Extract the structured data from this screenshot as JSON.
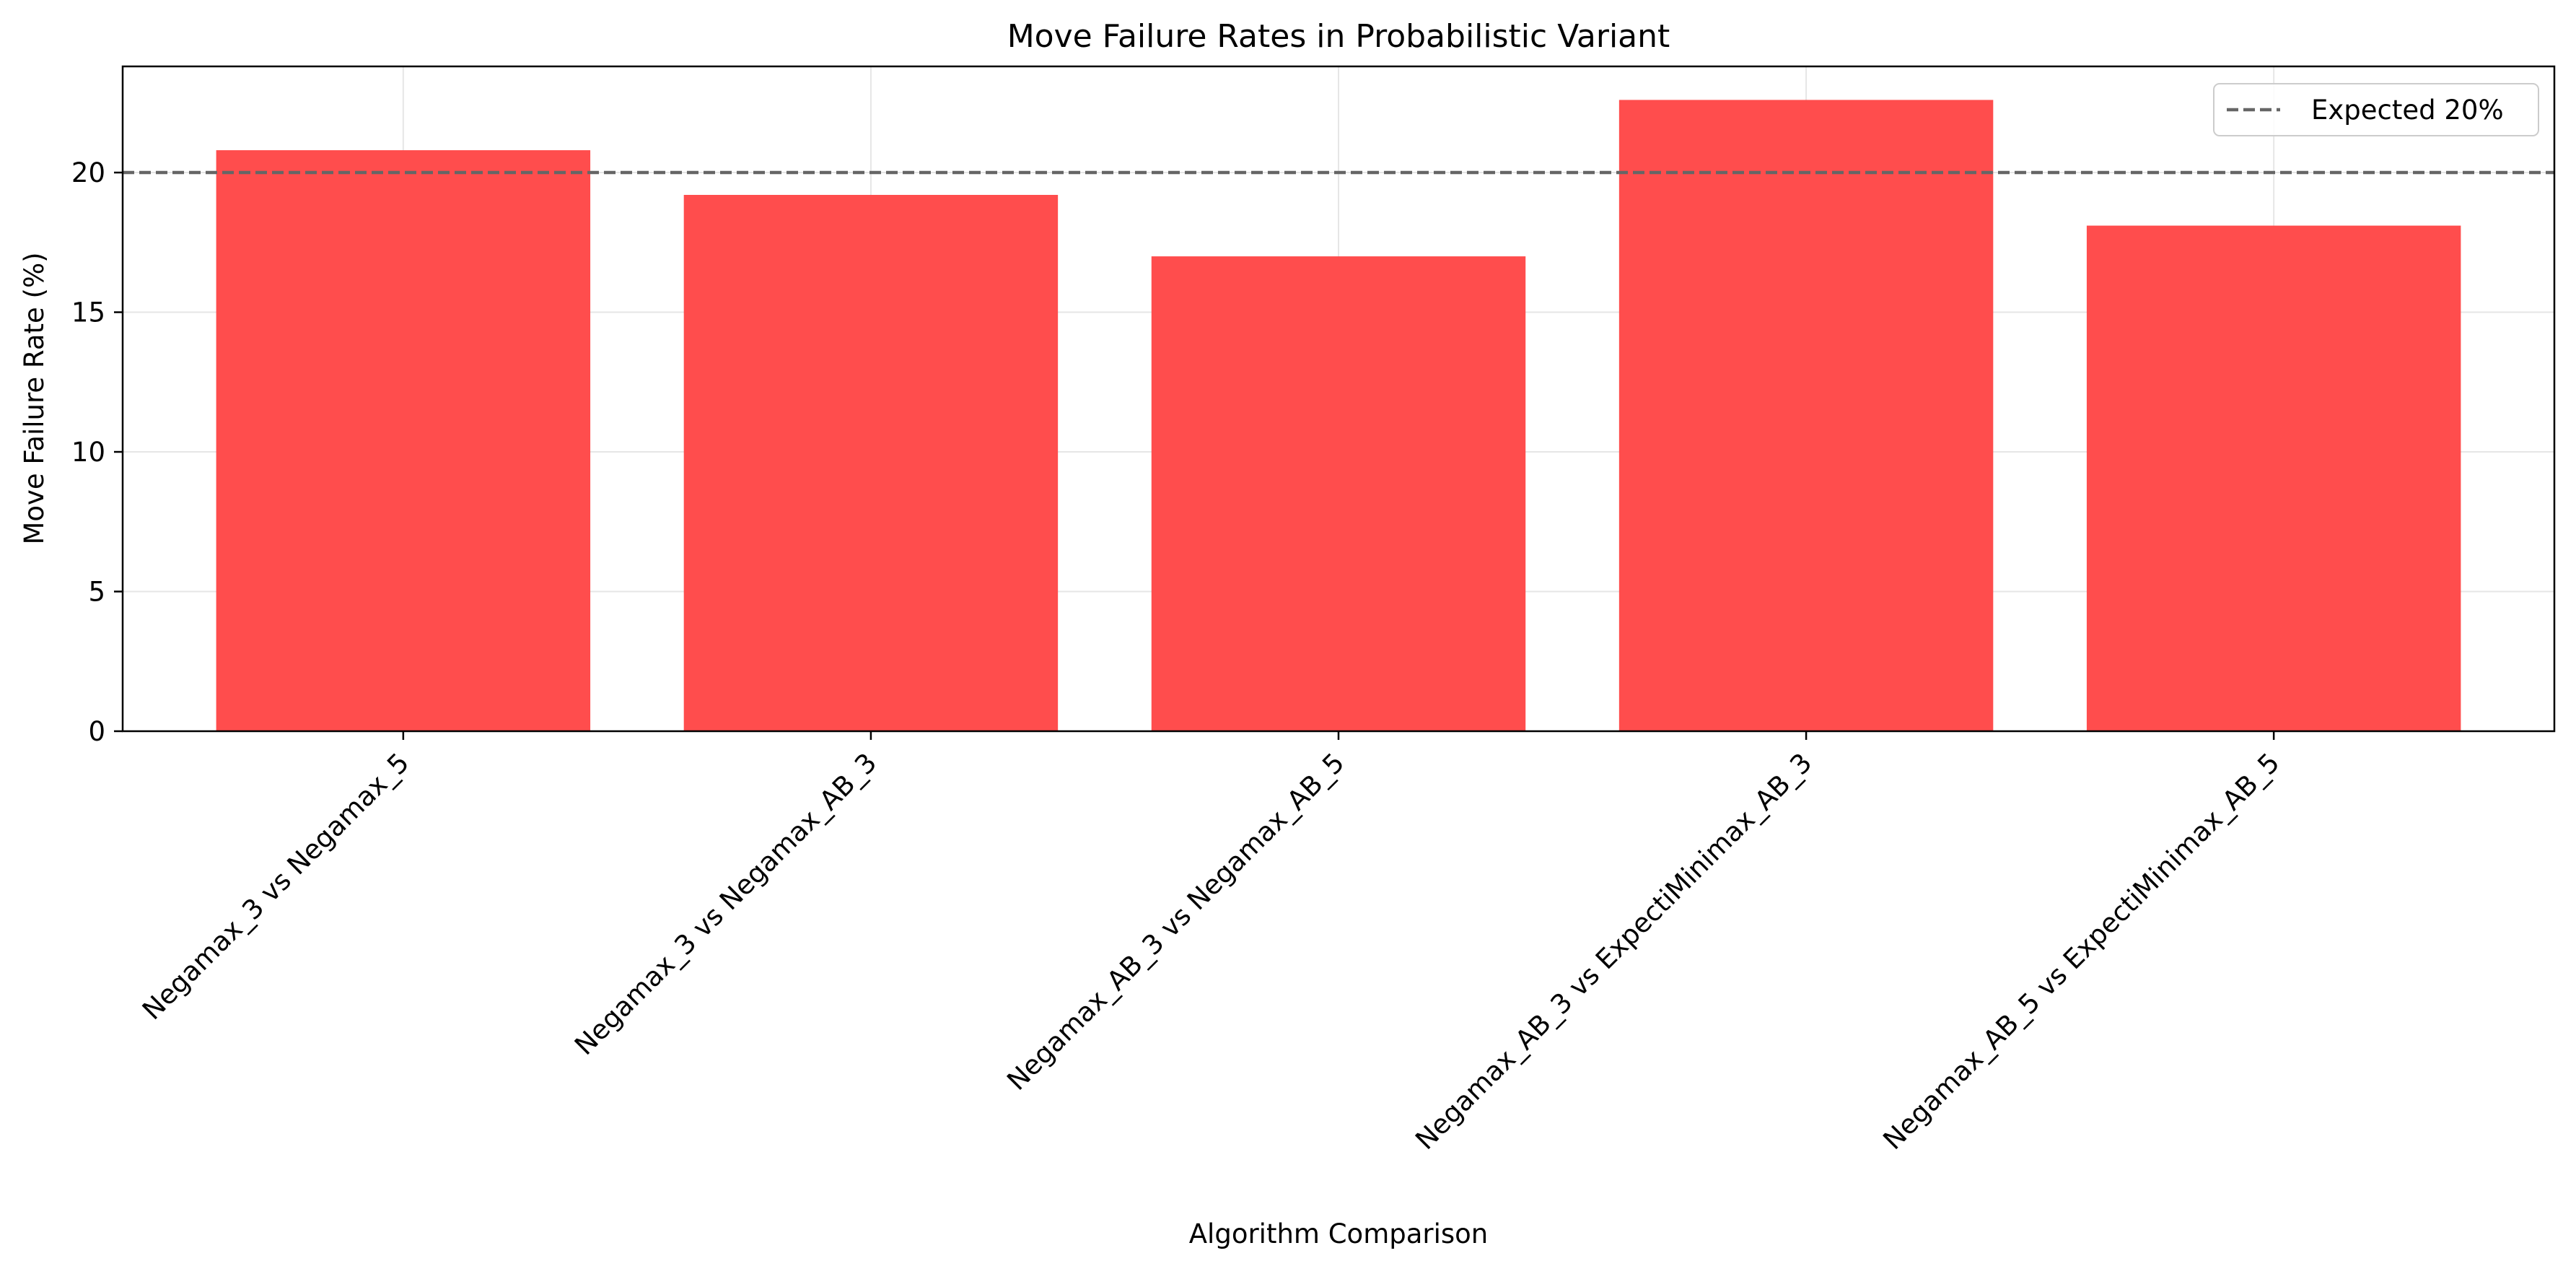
{
  "chart_data": {
    "type": "bar",
    "title": "Move Failure Rates in Probabilistic Variant",
    "xlabel": "Algorithm Comparison",
    "ylabel": "Move Failure Rate (%)",
    "categories": [
      "Negamax_3 vs Negamax_5",
      "Negamax_3 vs Negamax_AB_3",
      "Negamax_AB_3 vs Negamax_AB_5",
      "Negamax_AB_3 vs ExpectiMinimax_AB_3",
      "Negamax_AB_5 vs ExpectiMinimax_AB_5"
    ],
    "values": [
      20.8,
      19.2,
      17.0,
      22.6,
      18.1
    ],
    "ylim": [
      0,
      23.8
    ],
    "yticks": [
      0,
      5,
      10,
      15,
      20
    ],
    "bar_color": "#ff4d4d",
    "grid": true,
    "reference_line": {
      "value": 20,
      "label": "Expected 20%",
      "color": "#666666",
      "style": "dashed"
    },
    "legend_position": "top-right"
  }
}
